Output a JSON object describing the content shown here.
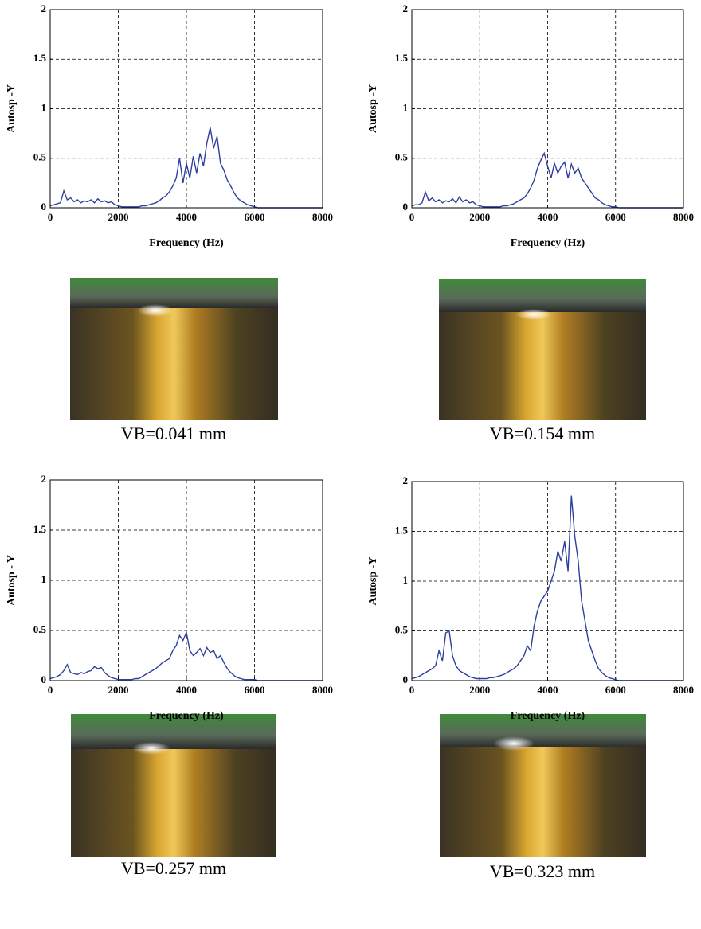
{
  "chart_data": [
    {
      "type": "line",
      "ylabel": "Autosp -Y",
      "xlabel": "Frequency (Hz)",
      "color": "#2e3f9e",
      "grid": true,
      "xlim": [
        0,
        8000
      ],
      "xticks": [
        0,
        2000,
        4000,
        6000,
        8000
      ],
      "ylim": [
        0,
        2
      ],
      "yticks": [
        0,
        0.5,
        1,
        1.5,
        2
      ],
      "x": [
        0,
        100,
        200,
        300,
        400,
        500,
        600,
        700,
        800,
        900,
        1000,
        1100,
        1200,
        1300,
        1400,
        1500,
        1600,
        1700,
        1800,
        1900,
        2000,
        2100,
        2200,
        2300,
        2400,
        2500,
        2600,
        2700,
        2800,
        2900,
        3000,
        3100,
        3200,
        3300,
        3400,
        3500,
        3600,
        3700,
        3800,
        3900,
        4000,
        4100,
        4200,
        4300,
        4400,
        4500,
        4600,
        4700,
        4800,
        4900,
        5000,
        5100,
        5200,
        5300,
        5400,
        5500,
        5600,
        5700,
        5800,
        5900,
        6000,
        6100,
        6200,
        6300,
        6400,
        6500,
        6600,
        6700,
        6800,
        6900,
        7000,
        7100,
        7200,
        7300,
        7400,
        7500,
        7600,
        7700,
        7800,
        7900,
        8000
      ],
      "values": [
        0.02,
        0.03,
        0.04,
        0.05,
        0.17,
        0.08,
        0.1,
        0.06,
        0.08,
        0.05,
        0.07,
        0.06,
        0.08,
        0.05,
        0.09,
        0.06,
        0.07,
        0.05,
        0.06,
        0.03,
        0.02,
        0.01,
        0.01,
        0.01,
        0.01,
        0.01,
        0.01,
        0.02,
        0.02,
        0.03,
        0.04,
        0.05,
        0.07,
        0.1,
        0.12,
        0.16,
        0.22,
        0.3,
        0.5,
        0.25,
        0.45,
        0.3,
        0.52,
        0.35,
        0.55,
        0.42,
        0.65,
        0.81,
        0.6,
        0.72,
        0.45,
        0.38,
        0.28,
        0.22,
        0.15,
        0.1,
        0.07,
        0.05,
        0.03,
        0.02,
        0.01,
        0,
        0,
        0,
        0,
        0,
        0,
        0,
        0,
        0,
        0,
        0,
        0,
        0,
        0,
        0,
        0,
        0,
        0,
        0,
        0
      ]
    },
    {
      "type": "line",
      "ylabel": "Autosp -Y",
      "xlabel": "Frequency (Hz)",
      "color": "#2e3f9e",
      "grid": true,
      "xlim": [
        0,
        8000
      ],
      "xticks": [
        0,
        2000,
        4000,
        6000,
        8000
      ],
      "ylim": [
        0,
        2
      ],
      "yticks": [
        0,
        0.5,
        1,
        1.5,
        2
      ],
      "x": [
        0,
        100,
        200,
        300,
        400,
        500,
        600,
        700,
        800,
        900,
        1000,
        1100,
        1200,
        1300,
        1400,
        1500,
        1600,
        1700,
        1800,
        1900,
        2000,
        2100,
        2200,
        2300,
        2400,
        2500,
        2600,
        2700,
        2800,
        2900,
        3000,
        3100,
        3200,
        3300,
        3400,
        3500,
        3600,
        3700,
        3800,
        3900,
        4000,
        4100,
        4200,
        4300,
        4400,
        4500,
        4600,
        4700,
        4800,
        4900,
        5000,
        5100,
        5200,
        5300,
        5400,
        5500,
        5600,
        5700,
        5800,
        5900,
        6000,
        6100,
        6200,
        6300,
        6400,
        6500,
        6600,
        6700,
        6800,
        6900,
        7000,
        7100,
        7200,
        7300,
        7400,
        7500,
        7600,
        7700,
        7800,
        7900,
        8000
      ],
      "values": [
        0.02,
        0.03,
        0.03,
        0.05,
        0.16,
        0.07,
        0.1,
        0.06,
        0.08,
        0.05,
        0.07,
        0.06,
        0.09,
        0.05,
        0.11,
        0.06,
        0.08,
        0.05,
        0.06,
        0.03,
        0.02,
        0.01,
        0.01,
        0.01,
        0.01,
        0.01,
        0.01,
        0.02,
        0.02,
        0.03,
        0.04,
        0.06,
        0.08,
        0.1,
        0.14,
        0.2,
        0.28,
        0.4,
        0.48,
        0.55,
        0.42,
        0.3,
        0.45,
        0.35,
        0.42,
        0.46,
        0.3,
        0.44,
        0.35,
        0.4,
        0.3,
        0.25,
        0.2,
        0.15,
        0.1,
        0.08,
        0.05,
        0.03,
        0.02,
        0.01,
        0.01,
        0,
        0,
        0,
        0,
        0,
        0,
        0,
        0,
        0,
        0,
        0,
        0,
        0,
        0,
        0,
        0,
        0,
        0,
        0,
        0
      ]
    },
    {
      "type": "line",
      "ylabel": "Autosp - Y",
      "xlabel": "Frequency (Hz)",
      "color": "#2e3f9e",
      "grid": true,
      "xlim": [
        0,
        8000
      ],
      "xticks": [
        0,
        2000,
        4000,
        6000,
        8000
      ],
      "ylim": [
        0,
        2
      ],
      "yticks": [
        0,
        0.5,
        1,
        1.5,
        2
      ],
      "x": [
        0,
        100,
        200,
        300,
        400,
        500,
        600,
        700,
        800,
        900,
        1000,
        1100,
        1200,
        1300,
        1400,
        1500,
        1600,
        1700,
        1800,
        1900,
        2000,
        2100,
        2200,
        2300,
        2400,
        2500,
        2600,
        2700,
        2800,
        2900,
        3000,
        3100,
        3200,
        3300,
        3400,
        3500,
        3600,
        3700,
        3800,
        3900,
        4000,
        4100,
        4200,
        4300,
        4400,
        4500,
        4600,
        4700,
        4800,
        4900,
        5000,
        5100,
        5200,
        5300,
        5400,
        5500,
        5600,
        5700,
        5800,
        5900,
        6000,
        6100,
        6200,
        6300,
        6400,
        6500,
        6600,
        6700,
        6800,
        6900,
        7000,
        7100,
        7200,
        7300,
        7400,
        7500,
        7600,
        7700,
        7800,
        7900,
        8000
      ],
      "values": [
        0.02,
        0.03,
        0.04,
        0.06,
        0.1,
        0.16,
        0.08,
        0.07,
        0.06,
        0.08,
        0.07,
        0.09,
        0.1,
        0.14,
        0.12,
        0.13,
        0.08,
        0.05,
        0.03,
        0.02,
        0.01,
        0.01,
        0.01,
        0.01,
        0.01,
        0.02,
        0.02,
        0.04,
        0.06,
        0.08,
        0.1,
        0.12,
        0.15,
        0.18,
        0.2,
        0.22,
        0.3,
        0.35,
        0.45,
        0.4,
        0.48,
        0.3,
        0.25,
        0.28,
        0.32,
        0.25,
        0.33,
        0.28,
        0.3,
        0.22,
        0.25,
        0.18,
        0.12,
        0.08,
        0.05,
        0.03,
        0.02,
        0.01,
        0.01,
        0.01,
        0.01,
        0,
        0,
        0,
        0,
        0,
        0,
        0,
        0,
        0,
        0,
        0,
        0,
        0,
        0,
        0,
        0,
        0,
        0,
        0,
        0
      ]
    },
    {
      "type": "line",
      "ylabel": "Autosp -Y",
      "xlabel": "Frequency (Hz)",
      "color": "#2e3f9e",
      "grid": true,
      "xlim": [
        0,
        8000
      ],
      "xticks": [
        0,
        2000,
        4000,
        6000,
        8000
      ],
      "ylim": [
        0,
        2
      ],
      "yticks": [
        0,
        0.5,
        1,
        1.5,
        2
      ],
      "x": [
        0,
        100,
        200,
        300,
        400,
        500,
        600,
        700,
        800,
        900,
        1000,
        1100,
        1200,
        1300,
        1400,
        1500,
        1600,
        1700,
        1800,
        1900,
        2000,
        2100,
        2200,
        2300,
        2400,
        2500,
        2600,
        2700,
        2800,
        2900,
        3000,
        3100,
        3200,
        3300,
        3400,
        3500,
        3600,
        3700,
        3800,
        3900,
        4000,
        4100,
        4200,
        4300,
        4400,
        4500,
        4600,
        4700,
        4800,
        4900,
        5000,
        5100,
        5200,
        5300,
        5400,
        5500,
        5600,
        5700,
        5800,
        5900,
        6000,
        6100,
        6200,
        6300,
        6400,
        6500,
        6600,
        6700,
        6800,
        6900,
        7000,
        7100,
        7200,
        7300,
        7400,
        7500,
        7600,
        7700,
        7800,
        7900,
        8000
      ],
      "values": [
        0.02,
        0.03,
        0.04,
        0.06,
        0.08,
        0.1,
        0.12,
        0.15,
        0.3,
        0.2,
        0.48,
        0.5,
        0.25,
        0.15,
        0.1,
        0.08,
        0.06,
        0.04,
        0.03,
        0.02,
        0.02,
        0.02,
        0.02,
        0.03,
        0.03,
        0.04,
        0.05,
        0.06,
        0.08,
        0.1,
        0.12,
        0.15,
        0.2,
        0.25,
        0.35,
        0.3,
        0.55,
        0.7,
        0.8,
        0.85,
        0.9,
        1.0,
        1.1,
        1.3,
        1.2,
        1.4,
        1.1,
        1.86,
        1.45,
        1.2,
        0.8,
        0.6,
        0.4,
        0.3,
        0.2,
        0.12,
        0.08,
        0.05,
        0.03,
        0.02,
        0.01,
        0,
        0,
        0,
        0,
        0,
        0,
        0,
        0,
        0,
        0,
        0,
        0,
        0,
        0,
        0,
        0,
        0,
        0,
        0,
        0
      ]
    }
  ],
  "captions": [
    "VB=0.041 mm",
    "VB=0.154 mm",
    "VB=0.257 mm",
    "VB=0.323 mm"
  ]
}
